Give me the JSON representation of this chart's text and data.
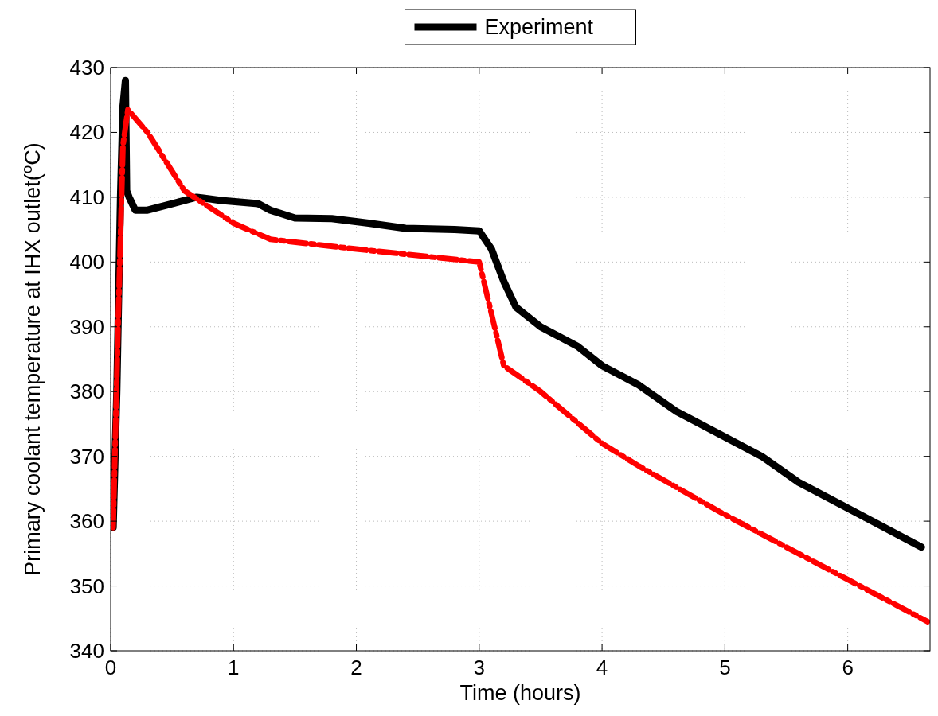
{
  "chart_data": {
    "type": "line",
    "xlabel": "Time (hours)",
    "ylabel": "Primary coolant temperature at IHX outlet($^{o}$C)",
    "xlim": [
      0,
      6.67
    ],
    "xticks": [
      0,
      1,
      2,
      3,
      4,
      5,
      6
    ],
    "ylim": [
      340,
      430
    ],
    "yticks": [
      340,
      350,
      360,
      370,
      380,
      390,
      400,
      410,
      420,
      430
    ],
    "grid": true,
    "legend": "top",
    "series": [
      {
        "name": "Experiment",
        "color": "#000000",
        "line_style": "solid",
        "x": [
          0.02,
          0.05,
          0.08,
          0.1,
          0.12,
          0.13,
          0.15,
          0.2,
          0.3,
          0.5,
          0.7,
          0.9,
          1.2,
          1.3,
          1.5,
          1.8,
          2.1,
          2.4,
          2.8,
          3.0,
          3.1,
          3.2,
          3.3,
          3.5,
          3.8,
          4.0,
          4.3,
          4.6,
          5.0,
          5.3,
          5.6,
          6.0,
          6.3,
          6.6
        ],
        "values": [
          359,
          380,
          410,
          424,
          428,
          411,
          410,
          408,
          408,
          409,
          410,
          409.5,
          409,
          408,
          406.8,
          406.7,
          406,
          405.2,
          405,
          404.8,
          402,
          397,
          393,
          390,
          387,
          384,
          381,
          377,
          373,
          370,
          366,
          362,
          359,
          356
        ]
      },
      {
        "color": "#ff0000",
        "line_style": "dashed",
        "x": [
          0.02,
          0.06,
          0.1,
          0.14,
          0.3,
          0.6,
          1,
          1.3,
          2,
          3.0,
          3.2,
          3.5,
          4.0,
          4.3,
          5,
          6,
          6.65
        ],
        "values": [
          359,
          390,
          418,
          423.5,
          420,
          411,
          406,
          403.5,
          402,
          400,
          384,
          380,
          372,
          368.5,
          361,
          351,
          344.5
        ]
      }
    ]
  }
}
